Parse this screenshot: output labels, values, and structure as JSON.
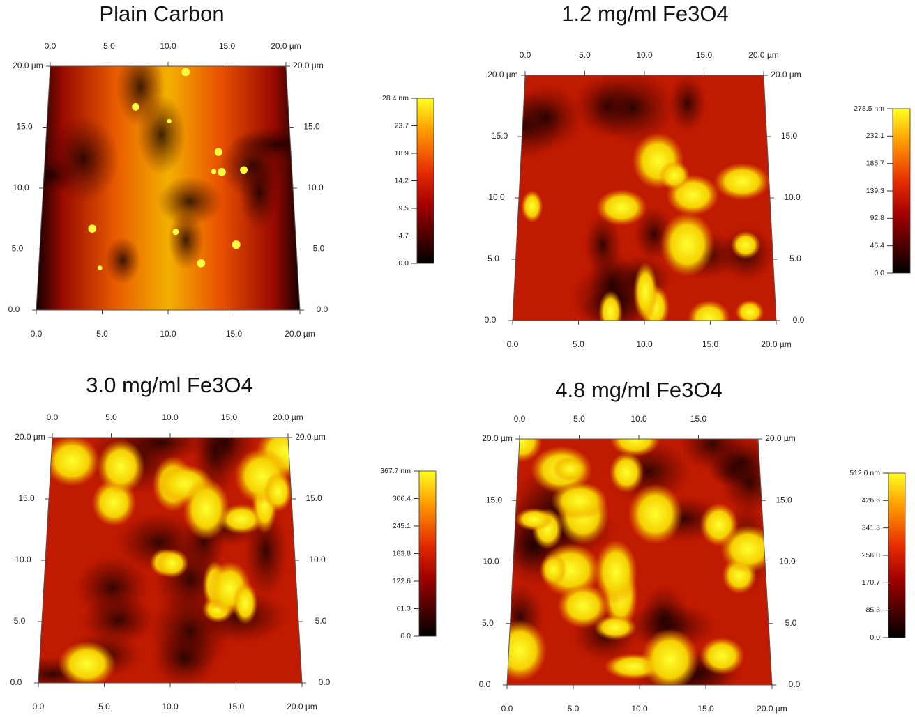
{
  "panels": [
    {
      "title": "Plain Carbon",
      "top_ticks": [
        "0.0",
        "5.0",
        "10.0",
        "15.0",
        "20.0 µm"
      ],
      "left_ticks": [
        "20.0 µm",
        "15.0",
        "10.0",
        "5.0",
        "0.0"
      ],
      "right_ticks": [
        "20.0 µm",
        "15.0",
        "10.0",
        "5.0",
        "0.0"
      ],
      "bottom_ticks": [
        "0.0",
        "5.0",
        "10.0",
        "15.0",
        "20.0 µm"
      ],
      "colorbar_ticks": [
        "28.4 nm",
        "23.7",
        "18.9",
        "14.2",
        "9.5",
        "4.7",
        "0.0"
      ]
    },
    {
      "title": "1.2 mg/ml Fe3O4",
      "top_ticks": [
        "0.0",
        "5.0",
        "10.0",
        "15.0",
        "20.0 µm"
      ],
      "left_ticks": [
        "20.0 µm",
        "15.0",
        "10.0",
        "5.0",
        "0.0"
      ],
      "right_ticks": [
        "20.0 µm",
        "15.0",
        "10.0",
        "5.0",
        "0.0"
      ],
      "bottom_ticks": [
        "0.0",
        "5.0",
        "10.0",
        "15.0",
        "20.0 µm"
      ],
      "colorbar_ticks": [
        "278.5 nm",
        "232.1",
        "185.7",
        "139.3",
        "92.8",
        "46.4",
        "0.0"
      ]
    },
    {
      "title": "3.0 mg/ml Fe3O4",
      "top_ticks": [
        "0.0",
        "5.0",
        "10.0",
        "15.0",
        "20.0 µm"
      ],
      "left_ticks": [
        "20.0 µm",
        "15.0",
        "10.0",
        "5.0",
        "0.0"
      ],
      "right_ticks": [
        "20.0 µm",
        "15.0",
        "10.0",
        "5.0",
        "0.0"
      ],
      "bottom_ticks": [
        "0.0",
        "5.0",
        "10.0",
        "15.0",
        "20.0 µm"
      ],
      "colorbar_ticks": [
        "367.7 nm",
        "306.4",
        "245.1",
        "183.8",
        "122.6",
        "61.3",
        "0.0"
      ]
    },
    {
      "title": "4.8 mg/ml Fe3O4",
      "top_ticks": [
        "0.0",
        "5.0",
        "10.0",
        "15.0"
      ],
      "left_ticks": [
        "20.0 µm",
        "15.0",
        "10.0",
        "5.0",
        "0.0"
      ],
      "right_ticks": [
        "20.0 µm",
        "15.0",
        "10.0",
        "5.0",
        "0.0"
      ],
      "bottom_ticks": [
        "0.0",
        "5.0",
        "10.0",
        "15.0",
        "20.0 µm"
      ],
      "colorbar_ticks": [
        "512.0 nm",
        "426.6",
        "341.3",
        "256.0",
        "170.7",
        "85.3",
        "0.0"
      ]
    }
  ]
}
